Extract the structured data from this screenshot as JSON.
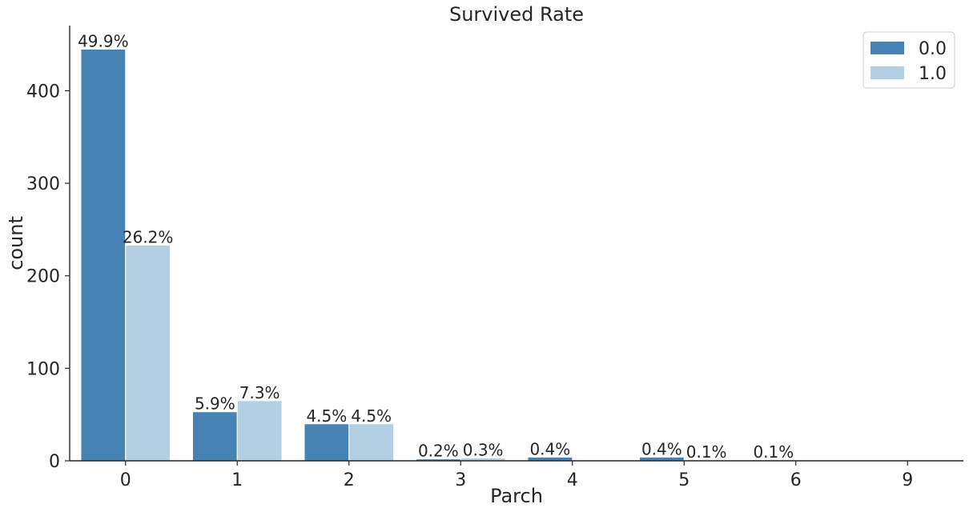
{
  "chart_data": {
    "type": "bar",
    "title": "Survived Rate",
    "xlabel": "Parch",
    "ylabel": "count",
    "categories": [
      "0",
      "1",
      "2",
      "3",
      "4",
      "5",
      "6",
      "9"
    ],
    "series": [
      {
        "name": "0.0",
        "color": "#4682b4",
        "values": [
          445,
          53,
          40,
          2,
          4,
          4,
          1,
          0
        ],
        "labels": [
          "49.9%",
          "5.9%",
          "4.5%",
          "0.2%",
          "0.4%",
          "0.4%",
          "0.1%",
          ""
        ]
      },
      {
        "name": "1.0",
        "color": "#b3cfe3",
        "values": [
          233,
          65,
          40,
          3,
          0,
          1,
          0,
          0
        ],
        "labels": [
          "26.2%",
          "7.3%",
          "4.5%",
          "0.3%",
          "",
          "0.1%",
          "",
          ""
        ]
      }
    ],
    "yticks": [
      0,
      100,
      200,
      300,
      400
    ],
    "ylim": [
      0,
      467
    ],
    "grid": false,
    "legend": "top-right"
  }
}
